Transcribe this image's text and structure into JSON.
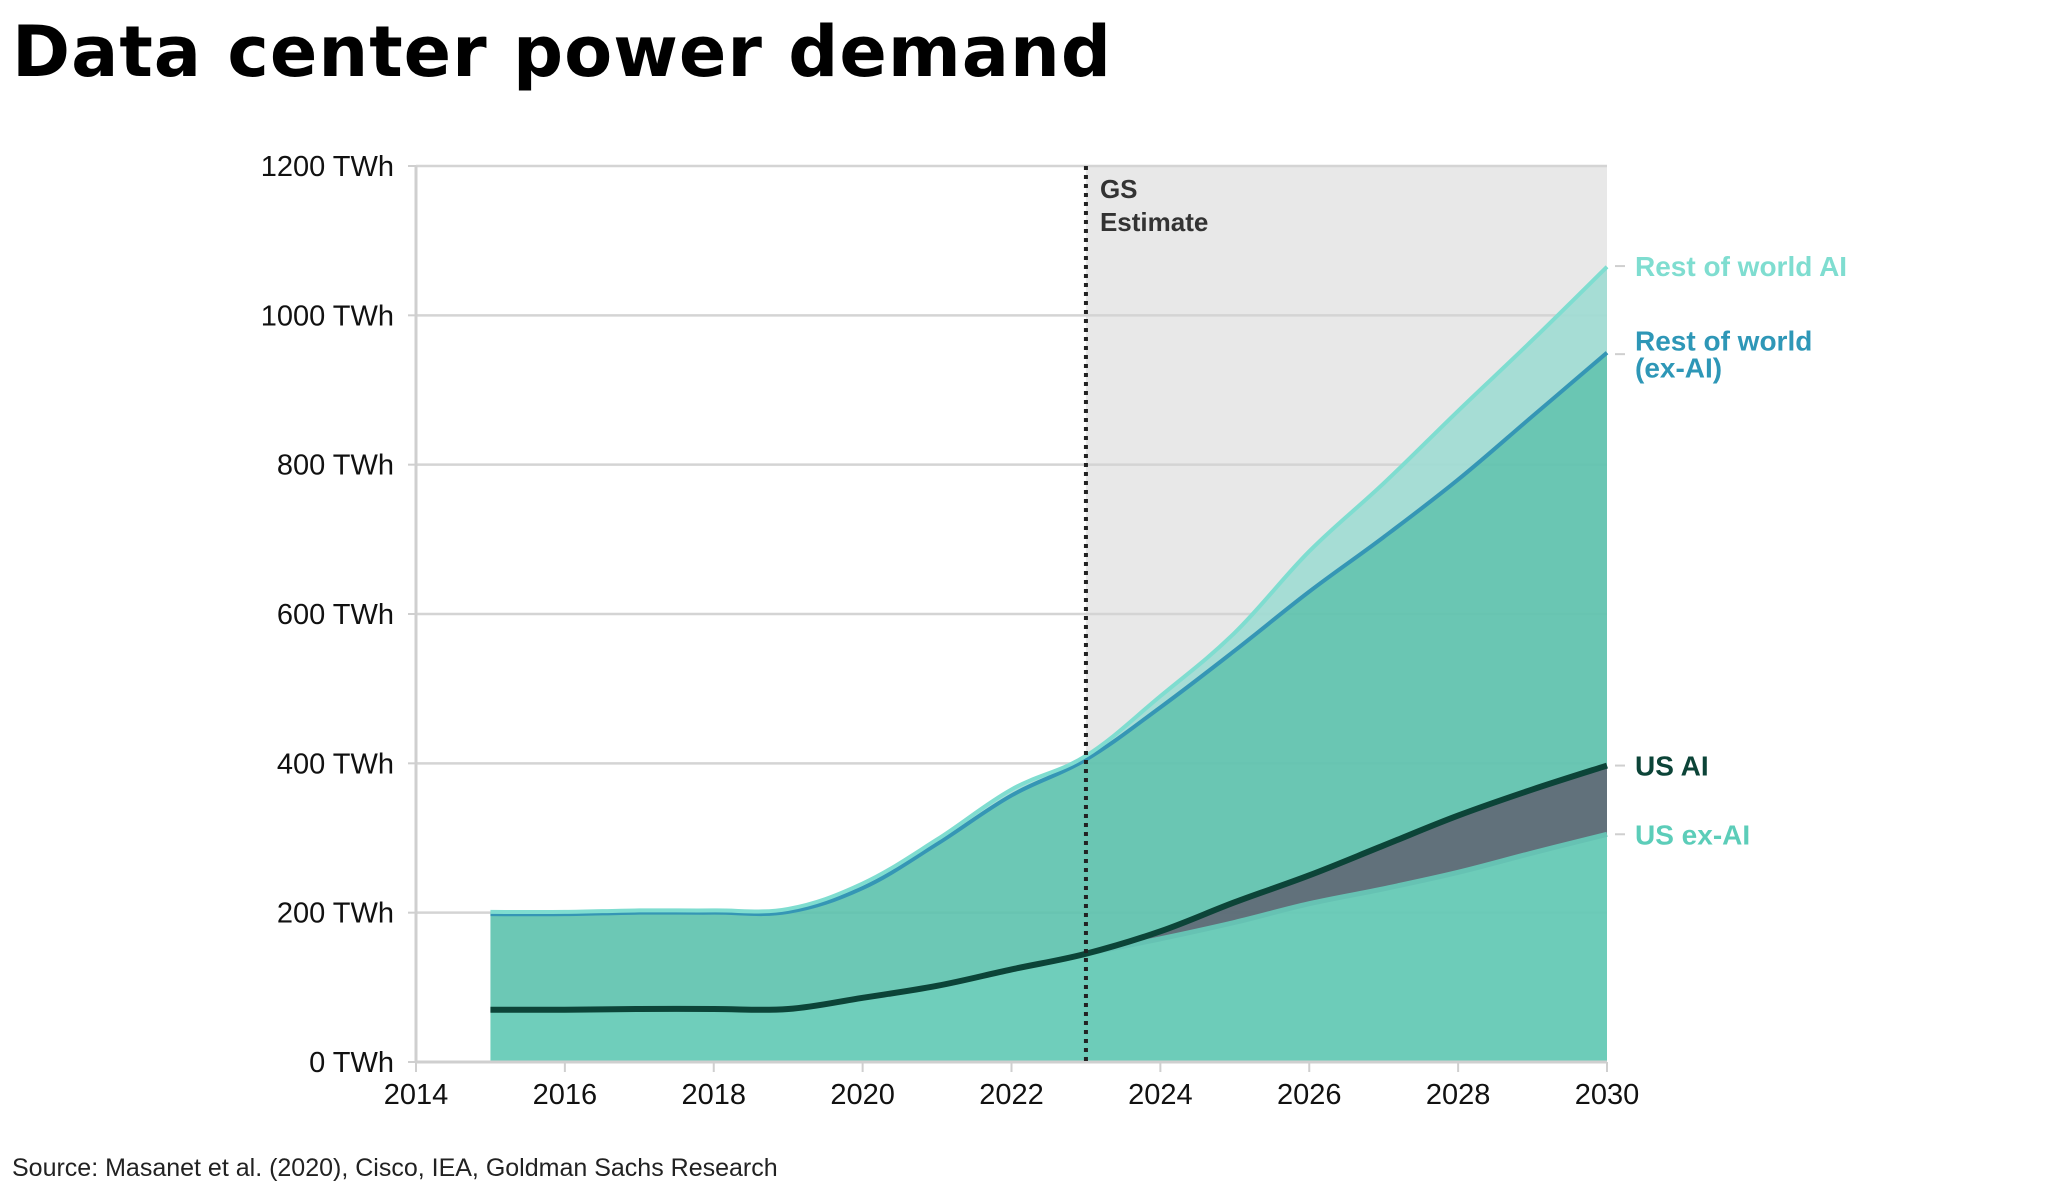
{
  "chart_data": {
    "type": "area",
    "title": "Data center power demand",
    "source": "Source: Masanet et al. (2020), Cisco, IEA, Goldman Sachs Research",
    "x": [
      2015,
      2016,
      2017,
      2018,
      2019,
      2020,
      2021,
      2022,
      2023,
      2024,
      2025,
      2026,
      2027,
      2028,
      2029,
      2030
    ],
    "xlim": [
      2014,
      2030
    ],
    "ylim": [
      0,
      1200
    ],
    "x_ticks": [
      "2014",
      "2016",
      "2018",
      "2020",
      "2022",
      "2024",
      "2026",
      "2028",
      "2030"
    ],
    "y_ticks": [
      "0 TWh",
      "200 TWh",
      "400 TWh",
      "600 TWh",
      "800 TWh",
      "1000 TWh",
      "1200 TWh"
    ],
    "grid": true,
    "stacked": true,
    "series": [
      {
        "name": "US ex-AI",
        "values": [
          70,
          70,
          71,
          71,
          71,
          86,
          102,
          124,
          145,
          165,
          187,
          212,
          232,
          254,
          280,
          305
        ],
        "color": "#5fc9b4"
      },
      {
        "name": "US AI",
        "values": [
          0,
          0,
          0,
          0,
          0,
          0,
          0,
          0,
          0,
          10,
          27,
          38,
          58,
          76,
          85,
          92
        ],
        "color": "#5a6a75"
      },
      {
        "name": "Rest of world (ex-AI)",
        "values": [
          128,
          128,
          129,
          129,
          130,
          147,
          190,
          233,
          260,
          300,
          337,
          380,
          413,
          450,
          500,
          553
        ],
        "color": "#5cc2ad"
      },
      {
        "name": "Rest of world AI",
        "values": [
          3,
          3,
          3,
          3,
          4,
          6,
          6,
          8,
          5,
          15,
          24,
          54,
          72,
          92,
          102,
          115
        ],
        "color": "#9fdcd3"
      }
    ],
    "line_colors": {
      "us_ai": "#0c4438",
      "rest_of_world_ex_ai": "#3596b5",
      "rest_of_world_ai": "#7fddd0",
      "us_ex_ai": "#66c2b3"
    },
    "label_colors": {
      "Rest of world AI": "#7fddd0",
      "Rest of world (ex-AI)": "#2e97b7",
      "US AI": "#0c4438",
      "US ex-AI": "#5ccdb9"
    },
    "legend": [
      {
        "lines": [
          "Rest of world AI"
        ],
        "y": 1066
      },
      {
        "lines": [
          "Rest of world",
          "(ex-AI)"
        ],
        "y": 948
      },
      {
        "lines": [
          "US AI"
        ],
        "y": 397
      },
      {
        "lines": [
          "US ex-AI"
        ],
        "y": 305
      }
    ],
    "estimate_start": 2023,
    "annotation": [
      "GS",
      "Estimate"
    ],
    "estimate_background": "#e8e8e8"
  }
}
